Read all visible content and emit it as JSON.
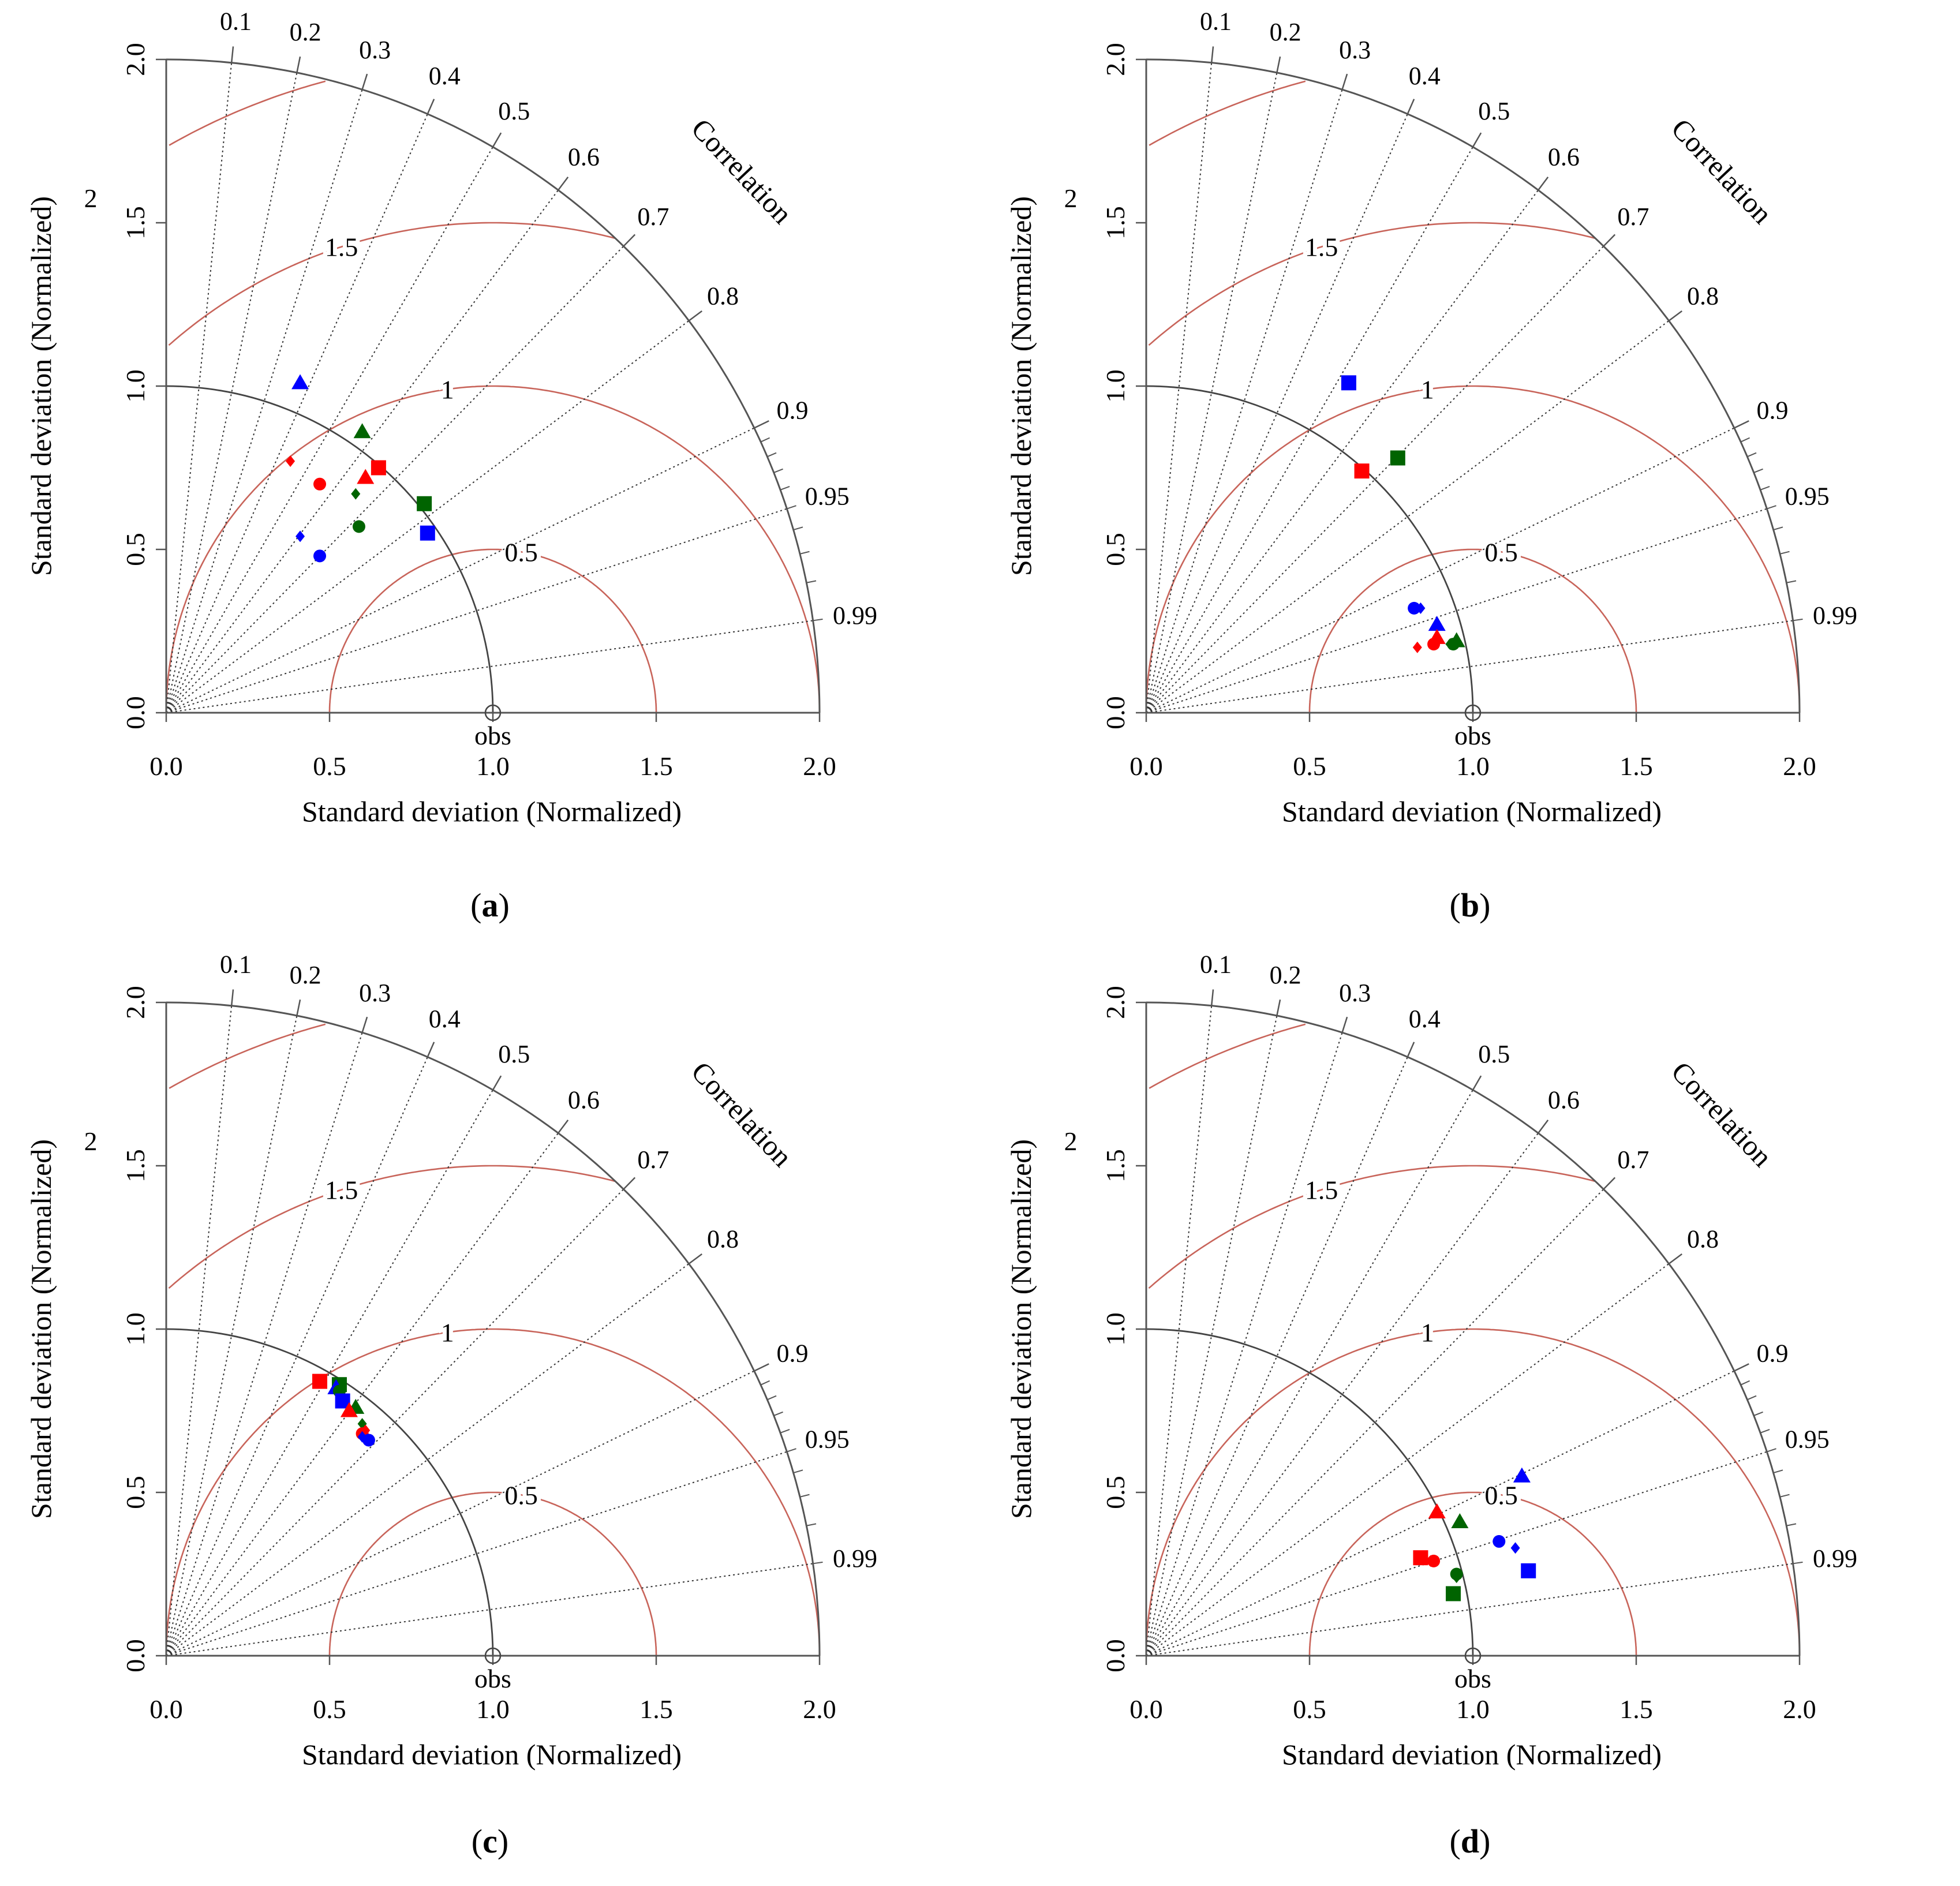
{
  "colors": {
    "rms": "#c8645a",
    "axis": "#555555",
    "red": "#ff0000",
    "blue": "#0000ff",
    "green": "#006400"
  },
  "common": {
    "ylabel": "Standard deviation (Normalized)",
    "xlabel": "Standard deviation (Normalized)",
    "correlation_title": "Correlation",
    "obs_label": "obs",
    "tick_labels": [
      "0.0",
      "0.5",
      "1.0",
      "1.5",
      "2.0"
    ],
    "correlation_labels": [
      "0.1",
      "0.2",
      "0.3",
      "0.4",
      "0.5",
      "0.6",
      "0.7",
      "0.8",
      "0.9",
      "0.95",
      "0.99"
    ],
    "rms_labels": [
      "0.5",
      "1",
      "1.5",
      "2"
    ]
  },
  "chart_data": [
    {
      "type": "scatter",
      "subtype": "taylor-diagram",
      "panel_label": "a",
      "sd_range": [
        0,
        2
      ],
      "correlations": [
        0.1,
        0.2,
        0.3,
        0.4,
        0.5,
        0.6,
        0.7,
        0.8,
        0.9,
        0.95,
        0.99
      ],
      "rms_contours": [
        0.5,
        1,
        1.5,
        2
      ],
      "points": [
        {
          "color": "blue",
          "marker": "triangle",
          "x": 0.41,
          "y": 1.01
        },
        {
          "color": "green",
          "marker": "triangle",
          "x": 0.6,
          "y": 0.86
        },
        {
          "color": "red",
          "marker": "diamond",
          "x": 0.38,
          "y": 0.77
        },
        {
          "color": "red",
          "marker": "square",
          "x": 0.65,
          "y": 0.75
        },
        {
          "color": "red",
          "marker": "triangle",
          "x": 0.61,
          "y": 0.72
        },
        {
          "color": "red",
          "marker": "circle",
          "x": 0.47,
          "y": 0.7
        },
        {
          "color": "green",
          "marker": "diamond",
          "x": 0.58,
          "y": 0.67
        },
        {
          "color": "green",
          "marker": "square",
          "x": 0.79,
          "y": 0.64
        },
        {
          "color": "green",
          "marker": "circle",
          "x": 0.59,
          "y": 0.57
        },
        {
          "color": "blue",
          "marker": "square",
          "x": 0.8,
          "y": 0.55
        },
        {
          "color": "blue",
          "marker": "diamond",
          "x": 0.41,
          "y": 0.54
        },
        {
          "color": "blue",
          "marker": "circle",
          "x": 0.47,
          "y": 0.48
        }
      ]
    },
    {
      "type": "scatter",
      "subtype": "taylor-diagram",
      "panel_label": "b",
      "sd_range": [
        0,
        2
      ],
      "correlations": [
        0.1,
        0.2,
        0.3,
        0.4,
        0.5,
        0.6,
        0.7,
        0.8,
        0.9,
        0.95,
        0.99
      ],
      "rms_contours": [
        0.5,
        1,
        1.5,
        2
      ],
      "points": [
        {
          "color": "blue",
          "marker": "square",
          "x": 0.62,
          "y": 1.01
        },
        {
          "color": "green",
          "marker": "square",
          "x": 0.77,
          "y": 0.78
        },
        {
          "color": "red",
          "marker": "square",
          "x": 0.66,
          "y": 0.74
        },
        {
          "color": "blue",
          "marker": "circle",
          "x": 0.82,
          "y": 0.32
        },
        {
          "color": "blue",
          "marker": "diamond",
          "x": 0.84,
          "y": 0.32
        },
        {
          "color": "blue",
          "marker": "triangle",
          "x": 0.89,
          "y": 0.27
        },
        {
          "color": "red",
          "marker": "triangle",
          "x": 0.89,
          "y": 0.23
        },
        {
          "color": "red",
          "marker": "circle",
          "x": 0.88,
          "y": 0.21
        },
        {
          "color": "red",
          "marker": "diamond",
          "x": 0.83,
          "y": 0.2
        },
        {
          "color": "green",
          "marker": "triangle",
          "x": 0.95,
          "y": 0.22
        },
        {
          "color": "green",
          "marker": "circle",
          "x": 0.94,
          "y": 0.21
        },
        {
          "color": "green",
          "marker": "diamond",
          "x": 0.93,
          "y": 0.21
        }
      ]
    },
    {
      "type": "scatter",
      "subtype": "taylor-diagram",
      "panel_label": "c",
      "sd_range": [
        0,
        2
      ],
      "correlations": [
        0.1,
        0.2,
        0.3,
        0.4,
        0.5,
        0.6,
        0.7,
        0.8,
        0.9,
        0.95,
        0.99
      ],
      "rms_contours": [
        0.5,
        1,
        1.5,
        2
      ],
      "points": [
        {
          "color": "red",
          "marker": "square",
          "x": 0.47,
          "y": 0.84
        },
        {
          "color": "green",
          "marker": "square",
          "x": 0.53,
          "y": 0.83
        },
        {
          "color": "blue",
          "marker": "triangle",
          "x": 0.52,
          "y": 0.82
        },
        {
          "color": "green",
          "marker": "circle",
          "x": 0.53,
          "y": 0.81
        },
        {
          "color": "blue",
          "marker": "square",
          "x": 0.54,
          "y": 0.78
        },
        {
          "color": "green",
          "marker": "triangle",
          "x": 0.58,
          "y": 0.76
        },
        {
          "color": "red",
          "marker": "triangle",
          "x": 0.56,
          "y": 0.75
        },
        {
          "color": "green",
          "marker": "diamond",
          "x": 0.6,
          "y": 0.71
        },
        {
          "color": "red",
          "marker": "circle",
          "x": 0.6,
          "y": 0.68
        },
        {
          "color": "red",
          "marker": "diamond",
          "x": 0.61,
          "y": 0.69
        },
        {
          "color": "blue",
          "marker": "diamond",
          "x": 0.6,
          "y": 0.67
        },
        {
          "color": "blue",
          "marker": "circle",
          "x": 0.62,
          "y": 0.66
        }
      ]
    },
    {
      "type": "scatter",
      "subtype": "taylor-diagram",
      "panel_label": "d",
      "sd_range": [
        0,
        2
      ],
      "correlations": [
        0.1,
        0.2,
        0.3,
        0.4,
        0.5,
        0.6,
        0.7,
        0.8,
        0.9,
        0.95,
        0.99
      ],
      "rms_contours": [
        0.5,
        1,
        1.5,
        2
      ],
      "points": [
        {
          "color": "blue",
          "marker": "triangle",
          "x": 1.15,
          "y": 0.55
        },
        {
          "color": "red",
          "marker": "triangle",
          "x": 0.89,
          "y": 0.44
        },
        {
          "color": "green",
          "marker": "triangle",
          "x": 0.96,
          "y": 0.41
        },
        {
          "color": "blue",
          "marker": "circle",
          "x": 1.08,
          "y": 0.35
        },
        {
          "color": "blue",
          "marker": "diamond",
          "x": 1.13,
          "y": 0.33
        },
        {
          "color": "red",
          "marker": "square",
          "x": 0.84,
          "y": 0.3
        },
        {
          "color": "red",
          "marker": "circle",
          "x": 0.88,
          "y": 0.29
        },
        {
          "color": "red",
          "marker": "diamond",
          "x": 0.87,
          "y": 0.29
        },
        {
          "color": "blue",
          "marker": "square",
          "x": 1.17,
          "y": 0.26
        },
        {
          "color": "green",
          "marker": "circle",
          "x": 0.95,
          "y": 0.25
        },
        {
          "color": "green",
          "marker": "diamond",
          "x": 0.95,
          "y": 0.24
        },
        {
          "color": "green",
          "marker": "square",
          "x": 0.94,
          "y": 0.19
        }
      ]
    }
  ]
}
